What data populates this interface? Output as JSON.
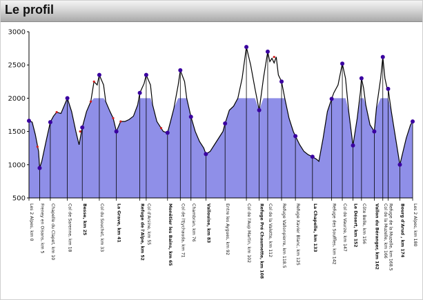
{
  "header": {
    "title": "Le profil"
  },
  "colors": {
    "fill": "#8f8fe8",
    "line": "#000000",
    "marker": "#3a00a0",
    "markerAlt": "#d02020",
    "header_bg": "#c8c8c8"
  },
  "chart_data": {
    "type": "area",
    "title": "",
    "xlabel": "",
    "ylabel": "",
    "ylim": [
      500,
      3000
    ],
    "yticks": [
      500,
      1000,
      1500,
      2000,
      2500,
      3000
    ],
    "x_range": [
      0,
      180
    ],
    "clip_level": 2000,
    "profile": [
      [
        0,
        1660
      ],
      [
        1.5,
        1640
      ],
      [
        3,
        1450
      ],
      [
        4.5,
        1200
      ],
      [
        5,
        950
      ],
      [
        6,
        1050
      ],
      [
        8,
        1350
      ],
      [
        10,
        1640
      ],
      [
        11.5,
        1730
      ],
      [
        13,
        1790
      ],
      [
        15,
        1770
      ],
      [
        18,
        2000
      ],
      [
        20,
        1800
      ],
      [
        22,
        1500
      ],
      [
        23.5,
        1300
      ],
      [
        25,
        1560
      ],
      [
        27,
        1800
      ],
      [
        29,
        1950
      ],
      [
        30.5,
        2250
      ],
      [
        32,
        2200
      ],
      [
        33,
        2350
      ],
      [
        35,
        2200
      ],
      [
        36,
        1950
      ],
      [
        38,
        1800
      ],
      [
        39.5,
        1700
      ],
      [
        41,
        1500
      ],
      [
        43,
        1650
      ],
      [
        45,
        1650
      ],
      [
        47,
        1680
      ],
      [
        49,
        1730
      ],
      [
        51,
        1900
      ],
      [
        52,
        2080
      ],
      [
        54,
        2220
      ],
      [
        55,
        2350
      ],
      [
        57,
        2200
      ],
      [
        58,
        1900
      ],
      [
        60,
        1650
      ],
      [
        62,
        1550
      ],
      [
        63,
        1500
      ],
      [
        65,
        1480
      ],
      [
        66,
        1600
      ],
      [
        68,
        1850
      ],
      [
        70,
        2200
      ],
      [
        71,
        2420
      ],
      [
        73,
        2250
      ],
      [
        74,
        2000
      ],
      [
        76,
        1720
      ],
      [
        78,
        1500
      ],
      [
        80,
        1350
      ],
      [
        82,
        1250
      ],
      [
        83,
        1160
      ],
      [
        85,
        1200
      ],
      [
        87,
        1300
      ],
      [
        89,
        1400
      ],
      [
        91,
        1500
      ],
      [
        92,
        1620
      ],
      [
        94,
        1820
      ],
      [
        96,
        1880
      ],
      [
        98,
        2000
      ],
      [
        100,
        2300
      ],
      [
        102,
        2770
      ],
      [
        104,
        2500
      ],
      [
        106,
        2150
      ],
      [
        108,
        1820
      ],
      [
        110,
        2300
      ],
      [
        112,
        2700
      ],
      [
        113,
        2550
      ],
      [
        114,
        2600
      ],
      [
        115,
        2530
      ],
      [
        116,
        2620
      ],
      [
        117,
        2350
      ],
      [
        118.5,
        2250
      ],
      [
        120,
        2000
      ],
      [
        122,
        1700
      ],
      [
        124,
        1500
      ],
      [
        125,
        1430
      ],
      [
        127,
        1300
      ],
      [
        129,
        1200
      ],
      [
        131,
        1150
      ],
      [
        133,
        1120
      ],
      [
        135,
        1080
      ],
      [
        136,
        1050
      ],
      [
        138,
        1400
      ],
      [
        140,
        1800
      ],
      [
        142,
        1990
      ],
      [
        143,
        2080
      ],
      [
        145,
        2200
      ],
      [
        147,
        2520
      ],
      [
        148.5,
        2300
      ],
      [
        150,
        1800
      ],
      [
        152,
        1290
      ],
      [
        154,
        1700
      ],
      [
        155.5,
        2100
      ],
      [
        156,
        2300
      ],
      [
        157,
        2150
      ],
      [
        158,
        1900
      ],
      [
        160,
        1600
      ],
      [
        162,
        1500
      ],
      [
        163,
        1850
      ],
      [
        165,
        2300
      ],
      [
        166,
        2620
      ],
      [
        167,
        2300
      ],
      [
        168,
        2150
      ],
      [
        168.5,
        2140
      ],
      [
        170,
        1800
      ],
      [
        172,
        1400
      ],
      [
        174,
        1000
      ],
      [
        175.5,
        1200
      ],
      [
        177,
        1400
      ],
      [
        179,
        1600
      ],
      [
        180,
        1650
      ]
    ],
    "markers": [
      {
        "x": 0,
        "y": 1660
      },
      {
        "x": 5,
        "y": 950
      },
      {
        "x": 10,
        "y": 1640
      },
      {
        "x": 18,
        "y": 2000
      },
      {
        "x": 25,
        "y": 1560
      },
      {
        "x": 33,
        "y": 2350
      },
      {
        "x": 41,
        "y": 1500
      },
      {
        "x": 52,
        "y": 2080
      },
      {
        "x": 55,
        "y": 2350
      },
      {
        "x": 65,
        "y": 1480
      },
      {
        "x": 71,
        "y": 2420
      },
      {
        "x": 76,
        "y": 1720
      },
      {
        "x": 83,
        "y": 1160
      },
      {
        "x": 92,
        "y": 1620
      },
      {
        "x": 102,
        "y": 2770
      },
      {
        "x": 108,
        "y": 1820
      },
      {
        "x": 112,
        "y": 2700
      },
      {
        "x": 118.5,
        "y": 2250
      },
      {
        "x": 125,
        "y": 1430
      },
      {
        "x": 133,
        "y": 1120
      },
      {
        "x": 142,
        "y": 1990
      },
      {
        "x": 147,
        "y": 2520
      },
      {
        "x": 152,
        "y": 1290
      },
      {
        "x": 156,
        "y": 2300
      },
      {
        "x": 162,
        "y": 1500
      },
      {
        "x": 166,
        "y": 2620
      },
      {
        "x": 168.5,
        "y": 2140
      },
      {
        "x": 174,
        "y": 1000
      },
      {
        "x": 180,
        "y": 1650
      }
    ],
    "red_markers": [
      {
        "x": 4,
        "y": 1270
      },
      {
        "x": 13,
        "y": 1790
      },
      {
        "x": 24,
        "y": 1500
      },
      {
        "x": 29,
        "y": 1950
      },
      {
        "x": 30.5,
        "y": 2250
      },
      {
        "x": 39.5,
        "y": 1700
      },
      {
        "x": 43,
        "y": 1650
      },
      {
        "x": 62,
        "y": 1550
      },
      {
        "x": 115,
        "y": 2620
      }
    ],
    "labels": [
      {
        "km": 0,
        "text": "Les 2 Alpes, km 0",
        "bold": false
      },
      {
        "km": 5,
        "text": "Freney en Oisans, km 5",
        "bold": false
      },
      {
        "km": 10,
        "text": "Chapelle du Clapet, km 10",
        "bold": false
      },
      {
        "km": 18,
        "text": "Col de Sarenne, km 18",
        "bold": false
      },
      {
        "km": 25,
        "text": "Besse, km 25",
        "bold": true
      },
      {
        "km": 33,
        "text": "Col du Souchet, km 33",
        "bold": false
      },
      {
        "km": 41,
        "text": "La Grave, km 41",
        "bold": true
      },
      {
        "km": 52,
        "text": "Refuge de l'Alpe, km 52",
        "bold": true
      },
      {
        "km": 55,
        "text": "Col d'Arsine, km 55",
        "bold": false
      },
      {
        "km": 65,
        "text": "Monêtier les Bains, km 65",
        "bold": true
      },
      {
        "km": 71,
        "text": "Col de l'Eychauda, km 71",
        "bold": false
      },
      {
        "km": 76,
        "text": "Chambran, km 76",
        "bold": false
      },
      {
        "km": 83,
        "text": "Vallouise, km 83",
        "bold": true
      },
      {
        "km": 92,
        "text": "Entre les Aygues, km 92",
        "bold": false
      },
      {
        "km": 102,
        "text": "Col de l'Aup Martin, km 102",
        "bold": false
      },
      {
        "km": 108,
        "text": "Refuge Pré Chaumette, km 108",
        "bold": true
      },
      {
        "km": 112,
        "text": "Col de la Valette, km 112",
        "bold": false
      },
      {
        "km": 118.5,
        "text": "Refuge Vallonpierre, km 118.5",
        "bold": false
      },
      {
        "km": 125,
        "text": "Refuge Xavier Blanc, km 125",
        "bold": false
      },
      {
        "km": 133,
        "text": "La Chapelle, km 133",
        "bold": true
      },
      {
        "km": 142,
        "text": "Refuge des Souffles, km 142",
        "bold": false
      },
      {
        "km": 147,
        "text": "Col de Vaurze, km 147",
        "bold": false
      },
      {
        "km": 152,
        "text": "Le Désert, km 152",
        "bold": true
      },
      {
        "km": 156,
        "text": "Côte Belle, km 156",
        "bold": false
      },
      {
        "km": 162,
        "text": "Vallon du Béranger, km 162",
        "bold": true
      },
      {
        "km": 166,
        "text": "Col de la Muzelle, km 166",
        "bold": false
      },
      {
        "km": 168.5,
        "text": "Refuge de la Muzelle, km 168.5",
        "bold": false
      },
      {
        "km": 174,
        "text": "Bourg d'Arud , km 174",
        "bold": true
      },
      {
        "km": 180,
        "text": "Les 2 Alpes, km 180",
        "bold": false
      }
    ]
  }
}
